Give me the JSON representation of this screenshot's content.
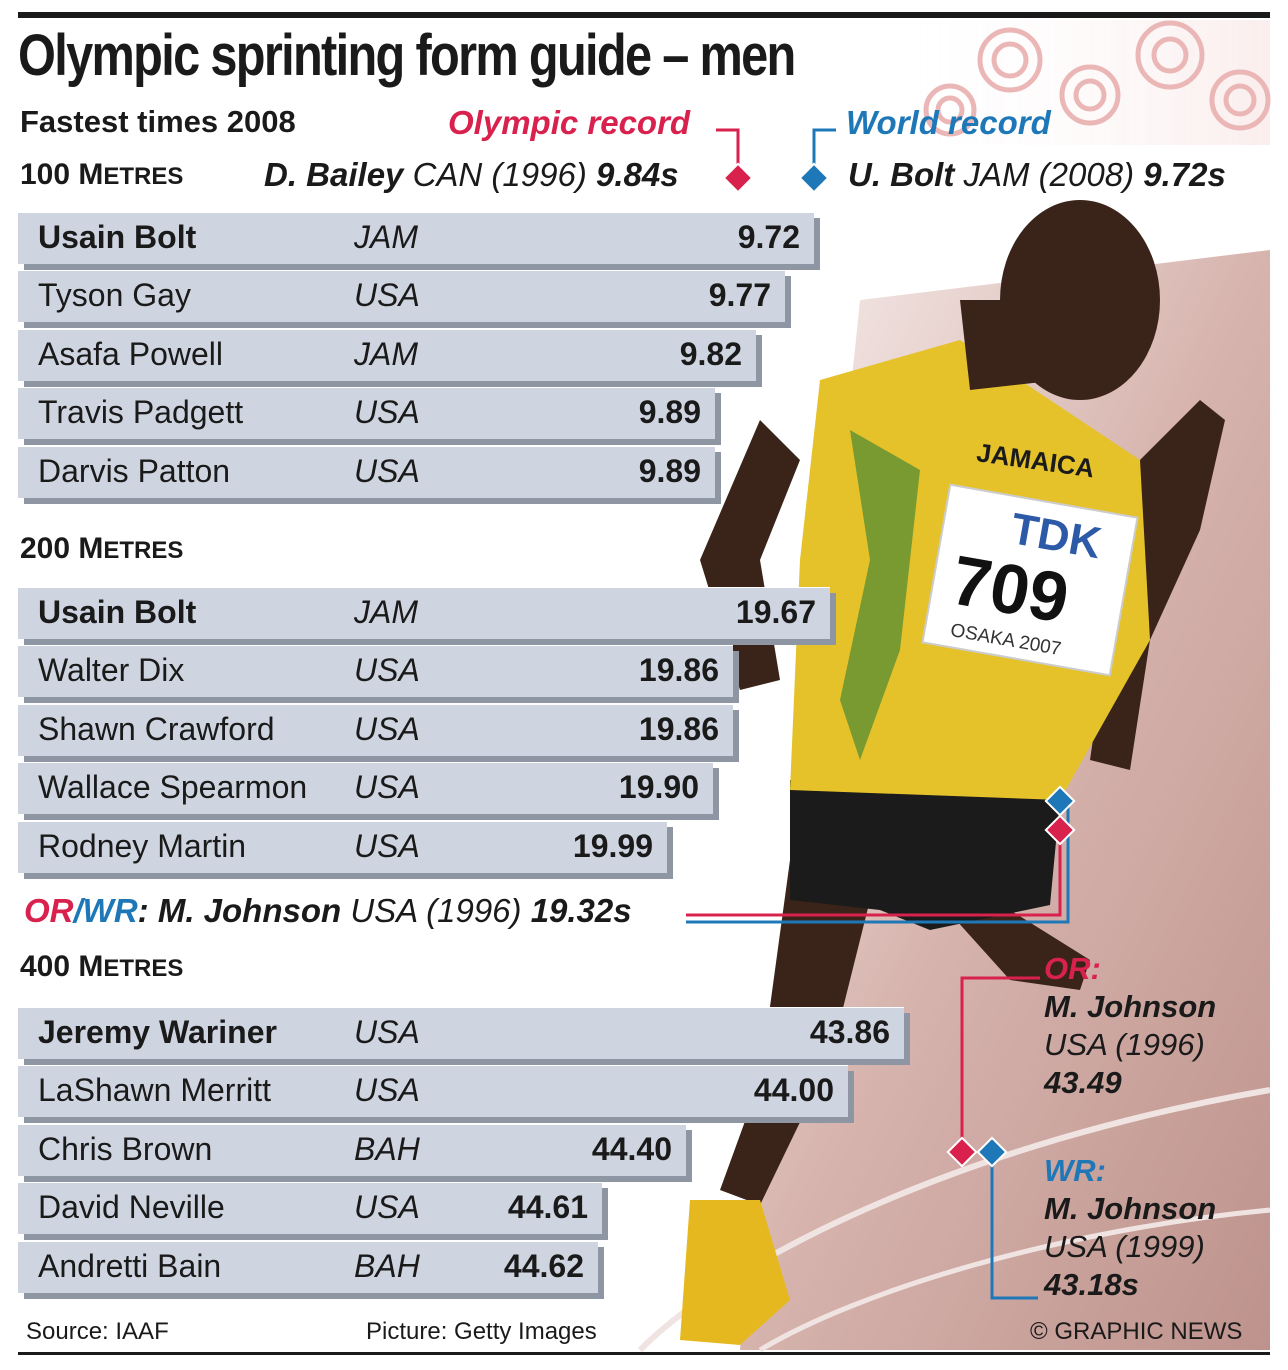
{
  "title": "Olympic sprinting form guide – men",
  "subtitle": "Fastest times 2008",
  "olympic_record_heading": "Olympic record",
  "world_record_heading": "World record",
  "colors": {
    "olympic_record": "#d9214e",
    "world_record": "#1e78b8",
    "bar": "#cfd5e0",
    "bar_shadow": "#8e96a3"
  },
  "sections": {
    "m100": {
      "title_num": "100 ",
      "title_cap": "M",
      "title_rest": "ETRES",
      "olympic_record": {
        "name": "D. Bailey",
        "country_year": " CAN (1996) ",
        "time": "9.84s"
      },
      "world_record": {
        "name": "U. Bolt",
        "country_year": " JAM (2008) ",
        "time": "9.72s"
      },
      "rows": [
        {
          "name": "Usain Bolt",
          "country": "JAM",
          "time": "9.72"
        },
        {
          "name": "Tyson Gay",
          "country": "USA",
          "time": "9.77"
        },
        {
          "name": "Asafa Powell",
          "country": "JAM",
          "time": "9.82"
        },
        {
          "name": "Travis Padgett",
          "country": "USA",
          "time": "9.89"
        },
        {
          "name": "Darvis Patton",
          "country": "USA",
          "time": "9.89"
        }
      ]
    },
    "m200": {
      "title_num": "200 ",
      "title_cap": "M",
      "title_rest": "ETRES",
      "record": {
        "or_label": "OR",
        "slash": "/",
        "wr_label": "WR",
        "colon": ":",
        "name": " M. Johnson",
        "country_year": " USA (1996) ",
        "time": "19.32s"
      },
      "rows": [
        {
          "name": "Usain Bolt",
          "country": "JAM",
          "time": "19.67"
        },
        {
          "name": "Walter Dix",
          "country": "USA",
          "time": "19.86"
        },
        {
          "name": "Shawn Crawford",
          "country": "USA",
          "time": "19.86"
        },
        {
          "name": "Wallace Spearmon",
          "country": "USA",
          "time": "19.90"
        },
        {
          "name": "Rodney Martin",
          "country": "USA",
          "time": "19.99"
        }
      ]
    },
    "m400": {
      "title_num": "400 ",
      "title_cap": "M",
      "title_rest": "ETRES",
      "olympic_record": {
        "label": "OR:",
        "name": "M. Johnson",
        "country_year": "USA (1996)",
        "time": "43.49"
      },
      "world_record": {
        "label": "WR:",
        "name": "M. Johnson",
        "country_year": "USA (1999)",
        "time": "43.18s"
      },
      "rows": [
        {
          "name": "Jeremy Wariner",
          "country": "USA",
          "time": "43.86"
        },
        {
          "name": "LaShawn Merritt",
          "country": "USA",
          "time": "44.00"
        },
        {
          "name": "Chris Brown",
          "country": "BAH",
          "time": "44.40"
        },
        {
          "name": "David Neville",
          "country": "USA",
          "time": "44.61"
        },
        {
          "name": "Andretti Bain",
          "country": "BAH",
          "time": "44.62"
        }
      ]
    }
  },
  "chart_data": [
    {
      "type": "bar",
      "title": "100 METRES",
      "categories": [
        "Usain Bolt",
        "Tyson Gay",
        "Asafa Powell",
        "Travis Padgett",
        "Darvis Patton"
      ],
      "values": [
        9.72,
        9.77,
        9.82,
        9.89,
        9.89
      ]
    },
    {
      "type": "bar",
      "title": "200 METRES",
      "categories": [
        "Usain Bolt",
        "Walter Dix",
        "Shawn Crawford",
        "Wallace Spearmon",
        "Rodney Martin"
      ],
      "values": [
        19.67,
        19.86,
        19.86,
        19.9,
        19.99
      ]
    },
    {
      "type": "bar",
      "title": "400 METRES",
      "categories": [
        "Jeremy Wariner",
        "LaShawn Merritt",
        "Chris Brown",
        "David Neville",
        "Andretti Bain"
      ],
      "values": [
        43.86,
        44.0,
        44.4,
        44.61,
        44.62
      ]
    }
  ],
  "photo": {
    "vest_text": "JAMAICA",
    "sponsor": "TDK",
    "bib_number": "709",
    "bib_event": "OSAKA 2007"
  },
  "footer": {
    "source": "Source: IAAF",
    "picture": "Picture: Getty Images",
    "credit": "© GRAPHIC NEWS"
  }
}
